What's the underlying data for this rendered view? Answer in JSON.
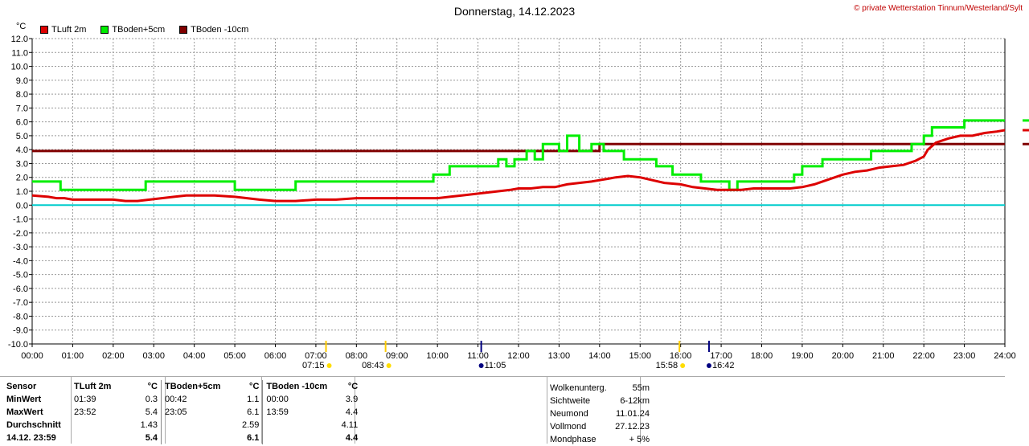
{
  "header": {
    "title": "Donnerstag, 14.12.2023",
    "copyright": "© private Wetterstation Tinnum/Westerland/Sylt",
    "unit": "°C"
  },
  "colors": {
    "tluft": "#dd0000",
    "tboden5": "#00ee00",
    "tboden10": "#800000",
    "zero": "#00cccc",
    "grid": "#999999"
  },
  "chart_data": {
    "type": "line",
    "ylim": [
      -10,
      12
    ],
    "xlim": [
      0,
      24
    ],
    "yticks": [
      "-10.0",
      "-9.0",
      "-8.0",
      "-7.0",
      "-6.0",
      "-5.0",
      "-4.0",
      "-3.0",
      "-2.0",
      "-1.0",
      "0.0",
      "1.0",
      "2.0",
      "3.0",
      "4.0",
      "5.0",
      "6.0",
      "7.0",
      "8.0",
      "9.0",
      "10.0",
      "11.0",
      "12.0"
    ],
    "xticks": [
      "00:00",
      "01:00",
      "02:00",
      "03:00",
      "04:00",
      "05:00",
      "06:00",
      "07:00",
      "08:00",
      "09:00",
      "10:00",
      "11:00",
      "12:00",
      "13:00",
      "14:00",
      "15:00",
      "16:00",
      "17:00",
      "18:00",
      "19:00",
      "20:00",
      "21:00",
      "22:00",
      "23:00",
      "24:00"
    ],
    "series": [
      {
        "name": "TLuft 2m",
        "color": "#dd0000",
        "x": [
          0,
          0.4,
          0.6,
          0.8,
          1,
          1.3,
          1.6,
          2,
          2.3,
          2.6,
          2.9,
          3.2,
          3.5,
          3.8,
          4,
          4.5,
          5,
          5.3,
          5.6,
          6,
          6.5,
          7,
          7.5,
          8,
          8.5,
          9,
          9.5,
          10,
          10.3,
          10.6,
          10.9,
          11.2,
          11.5,
          11.8,
          12,
          12.3,
          12.6,
          12.9,
          13.2,
          13.5,
          13.8,
          14,
          14.2,
          14.4,
          14.7,
          15,
          15.3,
          15.6,
          16,
          16.3,
          16.6,
          16.9,
          17.2,
          17.5,
          17.8,
          18.1,
          18.4,
          18.7,
          19,
          19.3,
          19.6,
          20,
          20.3,
          20.6,
          20.9,
          21.2,
          21.5,
          21.8,
          22,
          22.1,
          22.3,
          22.6,
          22.9,
          23.2,
          23.5,
          23.8,
          24
        ],
        "y": [
          0.7,
          0.6,
          0.5,
          0.5,
          0.4,
          0.4,
          0.4,
          0.4,
          0.3,
          0.3,
          0.4,
          0.5,
          0.6,
          0.7,
          0.7,
          0.7,
          0.6,
          0.5,
          0.4,
          0.3,
          0.3,
          0.4,
          0.4,
          0.5,
          0.5,
          0.5,
          0.5,
          0.5,
          0.6,
          0.7,
          0.8,
          0.9,
          1,
          1.1,
          1.2,
          1.2,
          1.3,
          1.3,
          1.5,
          1.6,
          1.7,
          1.8,
          1.9,
          2.0,
          2.1,
          2.0,
          1.8,
          1.6,
          1.5,
          1.3,
          1.2,
          1.1,
          1.1,
          1.1,
          1.2,
          1.2,
          1.2,
          1.2,
          1.3,
          1.5,
          1.8,
          2.2,
          2.4,
          2.5,
          2.7,
          2.8,
          2.9,
          3.2,
          3.5,
          4.0,
          4.5,
          4.8,
          5.0,
          5.0,
          5.2,
          5.3,
          5.4
        ]
      },
      {
        "name": "TBoden+5cm",
        "color": "#00ee00",
        "x": [
          0,
          0.7,
          0.7,
          2.8,
          2.8,
          5.0,
          5.0,
          6.5,
          6.5,
          9.9,
          9.9,
          10.3,
          10.3,
          10.7,
          10.7,
          11.5,
          11.5,
          11.7,
          11.7,
          11.9,
          11.9,
          12.2,
          12.2,
          12.4,
          12.4,
          12.6,
          12.6,
          13.0,
          13.0,
          13.2,
          13.2,
          13.5,
          13.5,
          13.8,
          13.8,
          14.1,
          14.1,
          14.6,
          14.6,
          15.4,
          15.4,
          15.8,
          15.8,
          16.5,
          16.5,
          17.2,
          17.2,
          17.4,
          17.4,
          17.6,
          17.6,
          18.5,
          18.5,
          18.8,
          18.8,
          19.0,
          19.0,
          19.5,
          19.5,
          20.7,
          20.7,
          21.7,
          21.7,
          22.0,
          22.0,
          22.2,
          22.2,
          23.0,
          23.0,
          24
        ],
        "y": [
          1.7,
          1.7,
          1.1,
          1.1,
          1.7,
          1.7,
          1.1,
          1.1,
          1.7,
          1.7,
          2.2,
          2.2,
          2.8,
          2.8,
          2.8,
          2.8,
          3.3,
          3.3,
          2.8,
          2.8,
          3.3,
          3.3,
          3.9,
          3.9,
          3.3,
          3.3,
          4.4,
          4.4,
          3.9,
          3.9,
          5.0,
          5.0,
          3.9,
          3.9,
          4.4,
          4.4,
          3.9,
          3.9,
          3.3,
          3.3,
          2.8,
          2.8,
          2.2,
          2.2,
          1.7,
          1.7,
          1.1,
          1.1,
          1.7,
          1.7,
          1.7,
          1.7,
          1.7,
          1.7,
          2.2,
          2.2,
          2.8,
          2.8,
          3.3,
          3.3,
          3.9,
          3.9,
          4.4,
          4.4,
          5.0,
          5.0,
          5.6,
          5.6,
          6.1,
          6.1
        ]
      },
      {
        "name": "TBoden -10cm",
        "color": "#800000",
        "x": [
          0,
          14.0,
          14.0,
          24
        ],
        "y": [
          3.9,
          3.9,
          4.4,
          4.4
        ]
      }
    ],
    "sun": [
      {
        "label": "07:15",
        "t": 7.25
      },
      {
        "label": "08:43",
        "t": 8.72
      },
      {
        "label": "11:05",
        "t": 11.08
      },
      {
        "label": "15:58",
        "t": 15.97
      },
      {
        "label": "16:42",
        "t": 16.7
      }
    ]
  },
  "table": {
    "headers": [
      "Sensor",
      "TLuft 2m",
      "°C",
      "TBoden+5cm",
      "°C",
      "TBoden -10cm",
      "°C"
    ],
    "rows": [
      [
        "MinWert",
        "01:39",
        "0.3",
        "00:42",
        "1.1",
        "00:00",
        "3.9"
      ],
      [
        "MaxWert",
        "23:52",
        "5.4",
        "23:05",
        "6.1",
        "13:59",
        "4.4"
      ],
      [
        "Durchschnitt",
        "",
        "1.43",
        "",
        "2.59",
        "",
        "4.11"
      ],
      [
        "14.12. 23:59",
        "",
        "5.4",
        "",
        "6.1",
        "",
        "4.4"
      ]
    ]
  },
  "astro": [
    {
      "k": "Wolkenunterg.",
      "v": "55m"
    },
    {
      "k": "Sichtweite",
      "v": "6-12km"
    },
    {
      "k": "Neumond",
      "v": "11.01.24"
    },
    {
      "k": "Vollmond",
      "v": "27.12.23"
    },
    {
      "k": "Mondphase",
      "v": "+ 5%"
    }
  ]
}
